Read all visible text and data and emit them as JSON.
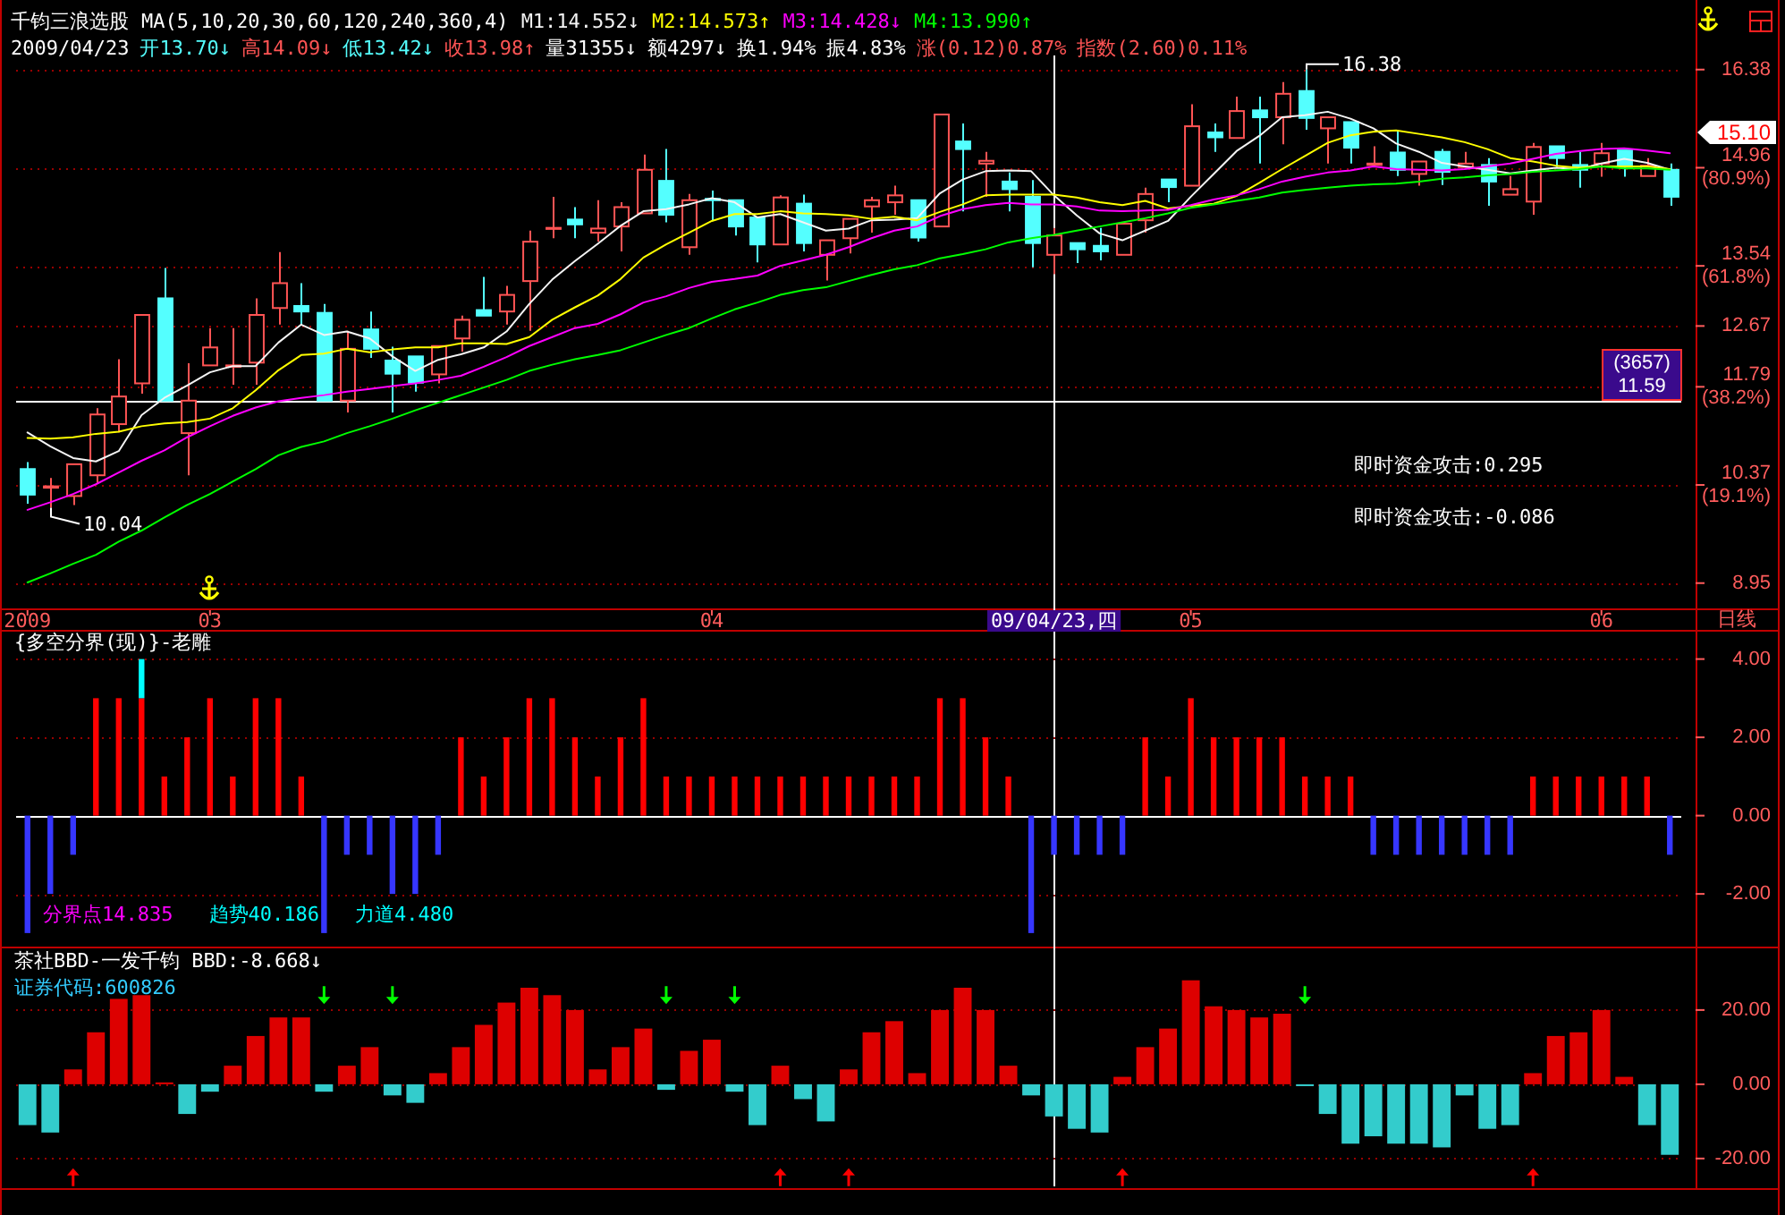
{
  "chart_data": [
    {
      "type": "candlestick",
      "categories": [
        "2009",
        null,
        null,
        null,
        null,
        null,
        null,
        null,
        "03",
        null,
        null,
        null,
        null,
        null,
        null,
        null,
        null,
        null,
        null,
        null,
        null,
        null,
        null,
        null,
        null,
        null,
        null,
        null,
        null,
        null,
        "04",
        null,
        null,
        null,
        null,
        null,
        null,
        null,
        null,
        null,
        null,
        null,
        null,
        null,
        null,
        "09/04/23,四",
        null,
        null,
        null,
        null,
        null,
        "05",
        null,
        null,
        null,
        null,
        null,
        null,
        null,
        null,
        null,
        null,
        null,
        null,
        null,
        null,
        null,
        null,
        null,
        "06",
        null,
        null,
        null
      ],
      "ohlc": [
        [
          10.6,
          10.7,
          10.1,
          10.23
        ],
        [
          10.33,
          10.47,
          10.04,
          10.35
        ],
        [
          10.21,
          10.67,
          10.08,
          10.67
        ],
        [
          10.51,
          11.48,
          10.4,
          11.39
        ],
        [
          11.25,
          12.19,
          11.13,
          11.65
        ],
        [
          11.84,
          12.83,
          11.69,
          12.83
        ],
        [
          13.07,
          13.51,
          11.59,
          11.59
        ],
        [
          11.12,
          12.13,
          10.51,
          11.59
        ],
        [
          12.1,
          12.64,
          12.1,
          12.36
        ],
        [
          12.08,
          12.64,
          11.82,
          12.1
        ],
        [
          12.14,
          13.07,
          11.82,
          12.83
        ],
        [
          12.93,
          13.74,
          12.69,
          13.29
        ],
        [
          12.96,
          13.29,
          12.69,
          12.88
        ],
        [
          12.86,
          12.99,
          11.59,
          11.59
        ],
        [
          11.59,
          12.6,
          11.42,
          12.34
        ],
        [
          12.62,
          12.88,
          12.21,
          12.34
        ],
        [
          12.17,
          12.37,
          11.42,
          11.98
        ],
        [
          12.23,
          12.23,
          11.72,
          11.85
        ],
        [
          11.97,
          12.38,
          11.84,
          12.38
        ],
        [
          12.49,
          12.82,
          12.3,
          12.76
        ],
        [
          12.9,
          13.38,
          12.82,
          12.82
        ],
        [
          12.88,
          13.25,
          12.69,
          13.12
        ],
        [
          13.32,
          14.05,
          12.6,
          13.89
        ],
        [
          14.08,
          14.54,
          13.94,
          14.09
        ],
        [
          14.21,
          14.39,
          13.94,
          14.14
        ],
        [
          14.02,
          14.49,
          13.89,
          14.08
        ],
        [
          14.11,
          14.46,
          13.75,
          14.39
        ],
        [
          14.3,
          15.15,
          14.3,
          14.93
        ],
        [
          14.77,
          15.23,
          14.17,
          14.28
        ],
        [
          13.81,
          14.58,
          13.7,
          14.49
        ],
        [
          14.51,
          14.63,
          14.2,
          14.49
        ],
        [
          14.49,
          14.49,
          13.98,
          14.11
        ],
        [
          14.24,
          14.24,
          13.59,
          13.85
        ],
        [
          13.85,
          14.56,
          13.85,
          14.53
        ],
        [
          14.44,
          14.57,
          13.75,
          13.87
        ],
        [
          13.7,
          13.91,
          13.33,
          13.91
        ],
        [
          13.94,
          14.22,
          13.72,
          14.22
        ],
        [
          14.4,
          14.54,
          14.02,
          14.49
        ],
        [
          14.46,
          14.7,
          14.28,
          14.56
        ],
        [
          14.49,
          14.49,
          13.89,
          13.95
        ],
        [
          14.11,
          15.73,
          14.11,
          15.73
        ],
        [
          15.34,
          15.6,
          14.33,
          15.23
        ],
        [
          15.02,
          15.19,
          14.54,
          15.06
        ],
        [
          14.76,
          14.89,
          14.33,
          14.65
        ],
        [
          14.54,
          14.78,
          13.52,
          13.87
        ],
        [
          13.7,
          14.09,
          13.42,
          13.98
        ],
        [
          13.87,
          13.87,
          13.58,
          13.78
        ],
        [
          13.83,
          14.09,
          13.62,
          13.75
        ],
        [
          13.7,
          14.15,
          13.7,
          14.15
        ],
        [
          14.2,
          14.67,
          14.02,
          14.58
        ],
        [
          14.79,
          14.79,
          14.46,
          14.68
        ],
        [
          14.7,
          15.88,
          14.7,
          15.56
        ],
        [
          15.47,
          15.6,
          15.19,
          15.4
        ],
        [
          15.39,
          15.99,
          15.39,
          15.78
        ],
        [
          15.79,
          15.99,
          15.02,
          15.69
        ],
        [
          15.69,
          16.2,
          15.3,
          16.03
        ],
        [
          16.07,
          16.38,
          15.51,
          15.68
        ],
        [
          15.53,
          15.69,
          15.02,
          15.69
        ],
        [
          15.62,
          15.62,
          15.02,
          15.25
        ],
        [
          15.0,
          15.27,
          14.97,
          15.02
        ],
        [
          15.18,
          15.49,
          14.84,
          14.93
        ],
        [
          14.87,
          15.05,
          14.7,
          15.05
        ],
        [
          15.19,
          15.23,
          14.71,
          14.9
        ],
        [
          14.97,
          15.19,
          14.97,
          15.02
        ],
        [
          15.0,
          15.1,
          14.41,
          14.76
        ],
        [
          14.57,
          14.84,
          14.57,
          14.65
        ],
        [
          14.47,
          15.32,
          14.28,
          15.26
        ],
        [
          15.27,
          15.27,
          14.97,
          15.1
        ],
        [
          15.0,
          15.19,
          14.67,
          14.93
        ],
        [
          15.02,
          15.32,
          14.83,
          15.17
        ],
        [
          15.21,
          15.21,
          14.83,
          14.97
        ],
        [
          14.84,
          15.1,
          14.84,
          14.99
        ],
        [
          14.93,
          15.02,
          14.41,
          14.54
        ]
      ],
      "series": [
        {
          "name": "M1:14.552↓",
          "type": "line",
          "color": "#f4f4f4",
          "values": [
            11.13,
            10.93,
            10.76,
            10.71,
            10.86,
            11.38,
            11.63,
            11.81,
            12.0,
            12.09,
            12.09,
            12.43,
            12.69,
            12.54,
            12.59,
            12.49,
            12.23,
            12.02,
            12.18,
            12.26,
            12.36,
            12.59,
            12.99,
            13.34,
            13.61,
            13.86,
            14.12,
            14.33,
            14.36,
            14.43,
            14.52,
            14.46,
            14.24,
            14.29,
            14.17,
            14.05,
            14.08,
            14.2,
            14.21,
            14.23,
            14.59,
            14.79,
            14.91,
            14.92,
            14.91,
            14.56,
            14.27,
            14.01,
            13.91,
            14.05,
            14.19,
            14.54,
            14.87,
            15.2,
            15.42,
            15.69,
            15.72,
            15.77,
            15.67,
            15.53,
            15.31,
            15.19,
            15.03,
            14.98,
            14.93,
            14.88,
            14.92,
            14.96,
            14.94,
            15.02,
            15.09,
            15.03,
            14.93
          ]
        },
        {
          "name": "M2:14.573↑",
          "type": "line",
          "color": "#ffff00",
          "values": [
            11.05,
            11.04,
            11.06,
            11.11,
            11.14,
            11.22,
            11.26,
            11.28,
            11.33,
            11.48,
            11.74,
            12.03,
            12.25,
            12.27,
            12.34,
            12.29,
            12.33,
            12.36,
            12.36,
            12.42,
            12.42,
            12.41,
            12.51,
            12.76,
            12.94,
            13.11,
            13.35,
            13.66,
            13.85,
            14.02,
            14.19,
            14.29,
            14.29,
            14.33,
            14.3,
            14.29,
            14.27,
            14.22,
            14.25,
            14.2,
            14.32,
            14.43,
            14.56,
            14.57,
            14.57,
            14.57,
            14.53,
            14.46,
            14.42,
            14.48,
            14.37,
            14.41,
            14.44,
            14.55,
            14.74,
            14.94,
            15.13,
            15.32,
            15.43,
            15.48,
            15.5,
            15.45,
            15.4,
            15.33,
            15.23,
            15.1,
            15.05,
            14.99,
            14.96,
            14.98,
            14.98,
            14.98,
            14.94
          ]
        },
        {
          "name": "M3:14.428↓",
          "type": "line",
          "color": "#ff00ff",
          "values": [
            10.01,
            10.12,
            10.24,
            10.38,
            10.55,
            10.72,
            10.87,
            11.06,
            11.22,
            11.37,
            11.49,
            11.58,
            11.63,
            11.67,
            11.72,
            11.76,
            11.8,
            11.84,
            11.89,
            11.95,
            12.08,
            12.22,
            12.38,
            12.51,
            12.64,
            12.7,
            12.84,
            13.01,
            13.1,
            13.22,
            13.31,
            13.35,
            13.4,
            13.54,
            13.62,
            13.7,
            13.81,
            13.94,
            14.05,
            14.11,
            14.26,
            14.36,
            14.42,
            14.45,
            14.43,
            14.43,
            14.4,
            14.34,
            14.33,
            14.34,
            14.35,
            14.42,
            14.5,
            14.56,
            14.65,
            14.76,
            14.83,
            14.89,
            14.92,
            14.98,
            14.94,
            14.93,
            14.92,
            14.94,
            14.98,
            15.02,
            15.09,
            15.16,
            15.2,
            15.23,
            15.24,
            15.21,
            15.17
          ]
        },
        {
          "name": "M4:13.990↑",
          "type": "line",
          "color": "#00ff00",
          "values": [
            8.96,
            9.09,
            9.23,
            9.36,
            9.55,
            9.71,
            9.9,
            10.08,
            10.24,
            10.42,
            10.6,
            10.8,
            10.92,
            11.0,
            11.12,
            11.22,
            11.33,
            11.45,
            11.56,
            11.67,
            11.78,
            11.89,
            12.02,
            12.11,
            12.19,
            12.25,
            12.32,
            12.43,
            12.54,
            12.64,
            12.78,
            12.91,
            13.01,
            13.12,
            13.19,
            13.23,
            13.32,
            13.41,
            13.49,
            13.55,
            13.65,
            13.71,
            13.78,
            13.88,
            13.94,
            13.99,
            14.05,
            14.11,
            14.17,
            14.23,
            14.3,
            14.38,
            14.43,
            14.48,
            14.53,
            14.6,
            14.64,
            14.67,
            14.7,
            14.72,
            14.73,
            14.76,
            14.8,
            14.82,
            14.85,
            14.87,
            14.9,
            14.92,
            14.94,
            14.98,
            14.95,
            14.95,
            14.93
          ]
        }
      ],
      "ylim": [
        8.61,
        16.61
      ],
      "yticks": [
        16.38,
        {
          "value": 14.96,
          "label": "14.96\n(80.9%)"
        },
        {
          "value": 13.54,
          "label": "13.54\n(61.8%)"
        },
        12.67,
        {
          "value": 11.79,
          "label": "11.79\n(38.2%)"
        },
        {
          "value": 10.37,
          "label": "10.37\n(19.1%)"
        },
        8.95
      ],
      "grid": "y",
      "ref_lines": [
        {
          "axis": "x",
          "value": "09/04/23,四",
          "color": "#ffffff"
        },
        {
          "axis": "y",
          "value": 11.59,
          "label": "(3657)\n11.59",
          "color": "#ffffff"
        }
      ],
      "annotations": [
        "千钧三浪选股",
        "MA(5,10,20,30,60,120,240,360,4)",
        "2009/04/23",
        "开13.70↓",
        "高14.09↓",
        "低13.42↓",
        "收13.98↑",
        "量31355↓",
        "额4297↓",
        "换1.94%",
        "振4.83%",
        "涨(0.12)0.87%",
        "指数(2.60)0.11%",
        "即时资金攻击:0.295",
        "即时资金攻击:-0.086",
        "日线",
        "16.38",
        "10.04",
        "15.10"
      ]
    },
    {
      "type": "bar",
      "stacked": true,
      "tick_labels": "y",
      "categories": [
        null,
        null,
        null,
        null,
        null,
        null,
        null,
        null,
        null,
        null,
        null,
        null,
        null,
        null,
        null,
        null,
        null,
        null,
        null,
        null,
        null,
        null,
        null,
        null,
        null,
        null,
        null,
        null,
        null,
        null,
        null,
        null,
        null,
        null,
        null,
        null,
        null,
        null,
        null,
        null,
        null,
        null,
        null,
        null,
        null,
        null,
        null,
        null,
        null,
        null,
        null,
        null,
        null,
        null,
        null,
        null,
        null,
        null,
        null,
        null,
        null,
        null,
        null,
        null,
        null,
        null,
        null,
        null,
        null,
        null,
        null,
        null,
        null
      ],
      "series": [
        {
          "color": "#ff0000",
          "values": [
            null,
            null,
            null,
            3,
            3,
            3,
            1,
            2,
            3,
            1,
            3,
            3,
            1,
            null,
            null,
            null,
            null,
            null,
            null,
            2,
            1,
            2,
            3,
            3,
            2,
            1,
            2,
            3,
            1,
            1,
            1,
            1,
            1,
            1,
            1,
            1,
            1,
            1,
            1,
            1,
            3,
            3,
            2,
            1,
            null,
            null,
            null,
            null,
            null,
            2,
            1,
            3,
            2,
            2,
            2,
            2,
            1,
            1,
            1,
            null,
            null,
            null,
            null,
            null,
            null,
            null,
            1,
            1,
            1,
            1,
            1,
            1,
            null
          ]
        },
        {
          "color": "#3636ff",
          "values": [
            -3,
            -2,
            -1,
            null,
            null,
            null,
            null,
            null,
            null,
            null,
            null,
            null,
            null,
            -3,
            -1,
            -1,
            -2,
            -2,
            -1,
            null,
            null,
            null,
            null,
            null,
            null,
            null,
            null,
            null,
            null,
            null,
            null,
            null,
            null,
            null,
            null,
            null,
            null,
            null,
            null,
            null,
            null,
            null,
            null,
            null,
            -3,
            -1,
            -1,
            -1,
            -1,
            null,
            null,
            null,
            null,
            null,
            null,
            null,
            null,
            null,
            null,
            -1,
            -1,
            -1,
            -1,
            -1,
            -1,
            -1,
            null,
            null,
            null,
            null,
            null,
            null,
            -1
          ]
        },
        {
          "color": "#00ffff",
          "values": [
            null,
            null,
            null,
            null,
            null,
            1,
            null,
            null,
            null,
            null,
            null,
            null,
            null,
            null,
            null,
            null,
            null,
            null,
            null,
            null,
            null,
            null,
            null,
            null,
            null,
            null,
            null,
            null,
            null,
            null,
            null,
            null,
            null,
            null,
            null,
            null,
            null,
            null,
            null,
            null,
            null,
            null,
            null,
            null,
            null,
            null,
            null,
            null,
            null,
            null,
            null,
            null,
            null,
            null,
            null,
            null,
            null,
            null,
            null,
            null,
            null,
            null,
            null,
            null,
            null,
            null,
            null,
            null,
            null,
            null,
            null,
            null,
            null
          ]
        }
      ],
      "ylim": [
        -3.3,
        4.7
      ],
      "yticks": [
        {
          "value": 4,
          "label": "4.00"
        },
        {
          "value": 2,
          "label": "2.00"
        },
        {
          "value": 0,
          "label": "0.00"
        },
        {
          "value": -2,
          "label": "-2.00"
        }
      ],
      "grid": "y",
      "annotations": [
        "{多空分界(现)}-老雕",
        "分界点14.835",
        "趋势40.186",
        "力道4.480"
      ]
    },
    {
      "type": "bar",
      "tick_labels": "y",
      "categories": [
        null,
        null,
        null,
        null,
        null,
        null,
        null,
        null,
        null,
        null,
        null,
        null,
        null,
        null,
        null,
        null,
        null,
        null,
        null,
        null,
        null,
        null,
        null,
        null,
        null,
        null,
        null,
        null,
        null,
        null,
        null,
        null,
        null,
        null,
        null,
        null,
        null,
        null,
        null,
        null,
        null,
        null,
        null,
        null,
        null,
        null,
        null,
        null,
        null,
        null,
        null,
        null,
        null,
        null,
        null,
        null,
        null,
        null,
        null,
        null,
        null,
        null,
        null,
        null,
        null,
        null,
        null,
        null,
        null,
        null,
        null,
        null,
        null
      ],
      "series": [
        {
          "values": [
            -11,
            -13,
            4,
            14,
            23,
            24,
            0.5,
            -8,
            -2,
            5,
            13,
            18,
            18,
            -2,
            5,
            10,
            -3,
            -5,
            3,
            10,
            16,
            22,
            26,
            24,
            20,
            4,
            10,
            15,
            -1.5,
            9,
            12,
            -2,
            -11,
            5,
            -4,
            -10,
            4,
            14,
            17,
            3,
            20,
            26,
            20,
            5,
            -3,
            -8.668,
            -12,
            -13,
            2,
            10,
            15,
            28,
            21,
            20,
            18,
            19,
            -0.5,
            -8,
            -16,
            -14,
            -16,
            -16,
            -17,
            -3,
            -12,
            -11,
            3,
            13,
            14,
            20,
            2,
            -11,
            -19
          ],
          "colors": [
            "#33cccc",
            "#33cccc",
            "#dd0000",
            "#dd0000",
            "#dd0000",
            "#dd0000",
            "#dd0000",
            "#33cccc",
            "#33cccc",
            "#dd0000",
            "#dd0000",
            "#dd0000",
            "#dd0000",
            "#33cccc",
            "#dd0000",
            "#dd0000",
            "#33cccc",
            "#33cccc",
            "#dd0000",
            "#dd0000",
            "#dd0000",
            "#dd0000",
            "#dd0000",
            "#dd0000",
            "#dd0000",
            "#dd0000",
            "#dd0000",
            "#dd0000",
            "#33cccc",
            "#dd0000",
            "#dd0000",
            "#33cccc",
            "#33cccc",
            "#dd0000",
            "#33cccc",
            "#33cccc",
            "#dd0000",
            "#dd0000",
            "#dd0000",
            "#dd0000",
            "#dd0000",
            "#dd0000",
            "#dd0000",
            "#dd0000",
            "#33cccc",
            "#33cccc",
            "#33cccc",
            "#33cccc",
            "#dd0000",
            "#dd0000",
            "#dd0000",
            "#dd0000",
            "#dd0000",
            "#dd0000",
            "#dd0000",
            "#dd0000",
            "#33cccc",
            "#33cccc",
            "#33cccc",
            "#33cccc",
            "#33cccc",
            "#33cccc",
            "#33cccc",
            "#33cccc",
            "#33cccc",
            "#33cccc",
            "#dd0000",
            "#dd0000",
            "#dd0000",
            "#dd0000",
            "#dd0000",
            "#33cccc",
            "#33cccc"
          ]
        },
        {
          "type": "scatter",
          "marker": "triangle",
          "color": "#00ff00",
          "values": [
            null,
            null,
            null,
            null,
            null,
            null,
            null,
            null,
            null,
            null,
            null,
            null,
            null,
            24,
            null,
            null,
            24,
            null,
            null,
            null,
            null,
            null,
            null,
            null,
            null,
            null,
            null,
            null,
            24,
            null,
            null,
            24,
            null,
            null,
            null,
            null,
            null,
            null,
            null,
            null,
            null,
            null,
            null,
            null,
            null,
            null,
            null,
            null,
            null,
            null,
            null,
            null,
            null,
            null,
            null,
            null,
            24,
            null,
            null,
            null,
            null,
            null,
            null,
            null,
            null,
            null,
            null,
            null,
            null,
            null,
            null,
            null,
            null
          ]
        },
        {
          "type": "scatter",
          "marker": "triangle",
          "color": "#ff0000",
          "values": [
            null,
            null,
            -25,
            null,
            null,
            null,
            null,
            null,
            null,
            null,
            null,
            null,
            null,
            null,
            null,
            null,
            null,
            null,
            null,
            null,
            null,
            null,
            null,
            null,
            null,
            null,
            null,
            null,
            null,
            null,
            null,
            null,
            null,
            -25,
            null,
            null,
            -25,
            null,
            null,
            null,
            null,
            null,
            null,
            null,
            null,
            null,
            null,
            null,
            -25,
            null,
            null,
            null,
            null,
            null,
            null,
            null,
            null,
            null,
            null,
            null,
            null,
            null,
            null,
            null,
            null,
            null,
            -25,
            null,
            null,
            null,
            null,
            null,
            null
          ]
        }
      ],
      "ylim": [
        -27.5,
        36.6
      ],
      "yticks": [
        {
          "value": 20,
          "label": "20.00"
        },
        {
          "value": 0,
          "label": "0.00"
        },
        {
          "value": -20,
          "label": "-20.00"
        }
      ],
      "grid": "y",
      "annotations": [
        "茶社BBD-一发千钧 BBD:-8.668↓",
        "证券代码:600826"
      ]
    }
  ]
}
